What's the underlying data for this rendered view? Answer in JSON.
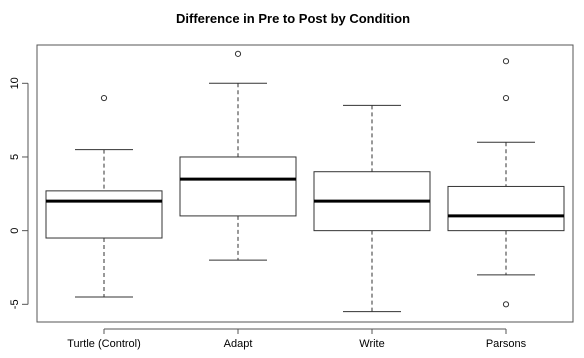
{
  "chart_data": {
    "type": "boxplot",
    "title": "Difference in Pre to Post by Condition",
    "xlabel": "",
    "ylabel": "",
    "ylim": [
      -6.2,
      12.6
    ],
    "yticks": [
      -5,
      0,
      5,
      10
    ],
    "ytick_labels": [
      "-5",
      "0",
      "5",
      "10"
    ],
    "categories": [
      "Turtle (Control)",
      "Adapt",
      "Write",
      "Parsons"
    ],
    "boxes": [
      {
        "category": "Turtle (Control)",
        "whisker_low": -4.5,
        "q1": -0.5,
        "median": 2,
        "q3": 2.7,
        "whisker_high": 5.5,
        "outliers": [
          9
        ]
      },
      {
        "category": "Adapt",
        "whisker_low": -2,
        "q1": 1,
        "median": 3.5,
        "q3": 5,
        "whisker_high": 10,
        "outliers": [
          12
        ]
      },
      {
        "category": "Write",
        "whisker_low": -5.5,
        "q1": 0,
        "median": 2,
        "q3": 4,
        "whisker_high": 8.5,
        "outliers": []
      },
      {
        "category": "Parsons",
        "whisker_low": -3,
        "q1": 0,
        "median": 1,
        "q3": 3,
        "whisker_high": 6,
        "outliers": [
          9,
          11.5,
          -5
        ]
      }
    ],
    "grid": false,
    "legend": "none"
  }
}
